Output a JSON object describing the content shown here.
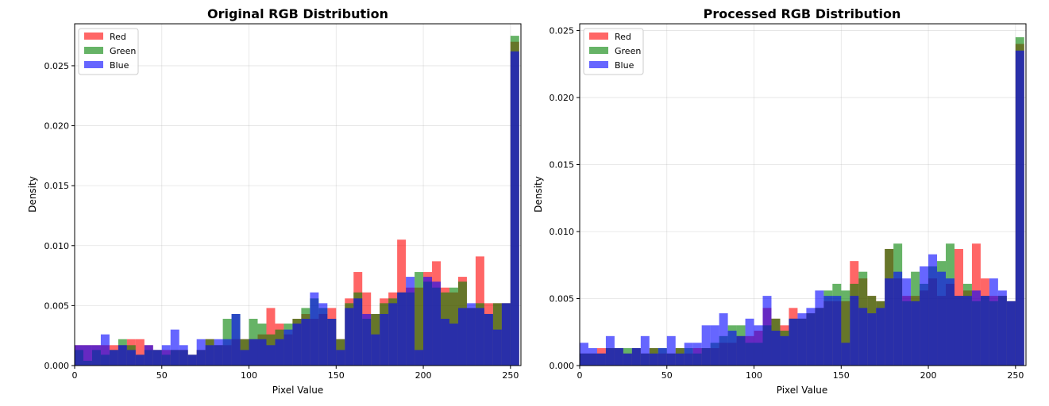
{
  "chart_data": [
    {
      "type": "bar",
      "title": "Original RGB Distribution",
      "xlabel": "Pixel Value",
      "ylabel": "Density",
      "xlim": [
        0,
        256
      ],
      "ylim": [
        0,
        0.0285
      ],
      "xticks": [
        "0",
        "50",
        "100",
        "150",
        "200",
        "250"
      ],
      "yticks": [
        "0.000",
        "0.005",
        "0.010",
        "0.015",
        "0.020",
        "0.025"
      ],
      "grid": true,
      "legend_position": "top-left",
      "bin_width": 5,
      "bin_start": 0,
      "series": [
        {
          "name": "Red",
          "color": "#ff0000",
          "opacity": 0.6,
          "values": [
            0.0017,
            0.0017,
            0.0017,
            0.0017,
            0.0017,
            0.0017,
            0.0022,
            0.0022,
            0.0017,
            0.0013,
            0.0013,
            0.0013,
            0.0013,
            0.0009,
            0.0013,
            0.0022,
            0.0017,
            0.0017,
            0.0022,
            0.0022,
            0.0022,
            0.0026,
            0.0048,
            0.0035,
            0.0026,
            0.0039,
            0.0043,
            0.0039,
            0.0043,
            0.0048,
            0.0022,
            0.0056,
            0.0078,
            0.0061,
            0.0043,
            0.0056,
            0.0061,
            0.0105,
            0.0065,
            0.0065,
            0.0078,
            0.0087,
            0.0065,
            0.0061,
            0.0074,
            0.0048,
            0.0091,
            0.0052,
            0.0052,
            0.0052,
            0.027
          ]
        },
        {
          "name": "Green",
          "color": "#008000",
          "opacity": 0.6,
          "values": [
            0.0013,
            0.0004,
            0.0013,
            0.0009,
            0.0013,
            0.0022,
            0.0017,
            0.0009,
            0.0013,
            0.0013,
            0.0009,
            0.0013,
            0.0013,
            0.0009,
            0.0013,
            0.0022,
            0.0017,
            0.0039,
            0.0043,
            0.0022,
            0.0039,
            0.0035,
            0.0026,
            0.003,
            0.0035,
            0.0039,
            0.0048,
            0.0056,
            0.0048,
            0.0039,
            0.0022,
            0.0052,
            0.0061,
            0.0039,
            0.0043,
            0.0052,
            0.0056,
            0.0061,
            0.0061,
            0.0078,
            0.007,
            0.0065,
            0.0061,
            0.0065,
            0.007,
            0.0048,
            0.0052,
            0.0043,
            0.0052,
            0.0052,
            0.0275
          ]
        },
        {
          "name": "Blue",
          "color": "#0000ff",
          "opacity": 0.6,
          "values": [
            0.0017,
            0.0017,
            0.0017,
            0.0026,
            0.0013,
            0.0017,
            0.0013,
            0.0009,
            0.0017,
            0.0013,
            0.0017,
            0.003,
            0.0017,
            0.0009,
            0.0022,
            0.0017,
            0.0022,
            0.0022,
            0.0043,
            0.0013,
            0.0022,
            0.0022,
            0.0017,
            0.0022,
            0.003,
            0.0035,
            0.0039,
            0.0061,
            0.0052,
            0.0039,
            0.0013,
            0.0048,
            0.0056,
            0.0043,
            0.0026,
            0.0043,
            0.0052,
            0.0061,
            0.0074,
            0.0013,
            0.0074,
            0.007,
            0.0039,
            0.0035,
            0.0048,
            0.0052,
            0.0048,
            0.0043,
            0.003,
            0.0052,
            0.0262
          ]
        }
      ]
    },
    {
      "type": "bar",
      "title": "Processed RGB Distribution",
      "xlabel": "Pixel Value",
      "ylabel": "Density",
      "xlim": [
        0,
        256
      ],
      "ylim": [
        0,
        0.0255
      ],
      "xticks": [
        "0",
        "50",
        "100",
        "150",
        "200",
        "250"
      ],
      "yticks": [
        "0.000",
        "0.005",
        "0.010",
        "0.015",
        "0.020",
        "0.025"
      ],
      "grid": true,
      "legend_position": "top-left",
      "bin_width": 5,
      "bin_start": 0,
      "series": [
        {
          "name": "Red",
          "color": "#ff0000",
          "opacity": 0.6,
          "values": [
            0.0009,
            0.0009,
            0.0013,
            0.0013,
            0.0013,
            0.0009,
            0.0013,
            0.0009,
            0.0013,
            0.0009,
            0.0009,
            0.0013,
            0.0009,
            0.0013,
            0.0013,
            0.0013,
            0.0017,
            0.0017,
            0.0022,
            0.0022,
            0.0026,
            0.0043,
            0.0035,
            0.003,
            0.0043,
            0.0035,
            0.0039,
            0.0043,
            0.0048,
            0.0048,
            0.0048,
            0.0078,
            0.0065,
            0.0052,
            0.0048,
            0.0087,
            0.0065,
            0.0052,
            0.0052,
            0.0056,
            0.0065,
            0.0052,
            0.0061,
            0.0087,
            0.0056,
            0.0091,
            0.0065,
            0.0052,
            0.0052,
            0.0048,
            0.024
          ]
        },
        {
          "name": "Green",
          "color": "#008000",
          "opacity": 0.6,
          "values": [
            0.0009,
            0.0009,
            0.0009,
            0.0013,
            0.0013,
            0.0013,
            0.0013,
            0.0009,
            0.0013,
            0.0013,
            0.0009,
            0.0013,
            0.0013,
            0.0009,
            0.0013,
            0.0017,
            0.0022,
            0.003,
            0.003,
            0.0017,
            0.0017,
            0.003,
            0.0035,
            0.0026,
            0.0035,
            0.0035,
            0.0039,
            0.0043,
            0.0056,
            0.0061,
            0.0056,
            0.0061,
            0.007,
            0.0052,
            0.0048,
            0.0087,
            0.0091,
            0.0048,
            0.007,
            0.0061,
            0.0074,
            0.0078,
            0.0091,
            0.0052,
            0.0061,
            0.0048,
            0.0052,
            0.0048,
            0.0052,
            0.0048,
            0.0245
          ]
        },
        {
          "name": "Blue",
          "color": "#0000ff",
          "opacity": 0.6,
          "values": [
            0.0017,
            0.0013,
            0.0009,
            0.0022,
            0.0013,
            0.0009,
            0.0013,
            0.0022,
            0.0009,
            0.0013,
            0.0022,
            0.0009,
            0.0017,
            0.0017,
            0.003,
            0.003,
            0.0039,
            0.0026,
            0.0022,
            0.0035,
            0.003,
            0.0052,
            0.0026,
            0.0022,
            0.0035,
            0.0039,
            0.0043,
            0.0056,
            0.0052,
            0.0052,
            0.0017,
            0.0052,
            0.0043,
            0.0039,
            0.0043,
            0.0065,
            0.007,
            0.0065,
            0.0048,
            0.0074,
            0.0083,
            0.007,
            0.0065,
            0.0052,
            0.0052,
            0.0056,
            0.0052,
            0.0065,
            0.0056,
            0.0048,
            0.0235
          ]
        }
      ]
    }
  ]
}
